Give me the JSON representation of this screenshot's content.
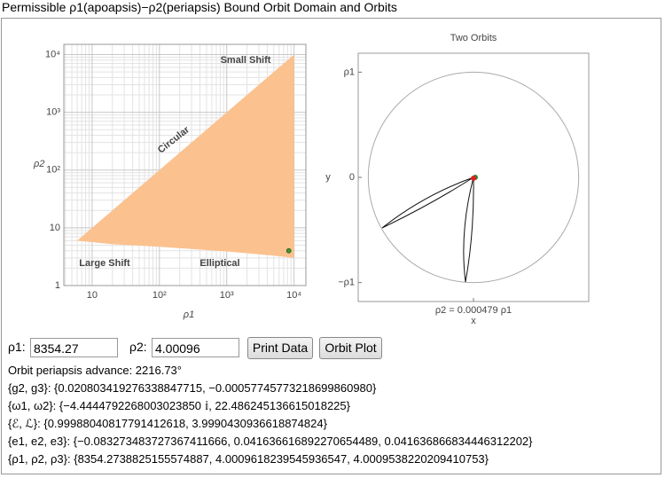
{
  "title": "Permissible ρ1(apoapsis)−ρ2(periapsis) Bound Orbit Domain and Orbits",
  "chart_data": [
    {
      "type": "area",
      "log_x": true,
      "log_y": true,
      "grid": true,
      "xlabel": "ρ1",
      "ylabel": "ρ2",
      "color": "#fbc18e",
      "x": [
        6,
        20,
        100,
        1000,
        5000,
        10000,
        10000
      ],
      "values": [
        6,
        5.2,
        4.7,
        3.9,
        3.3,
        3.0,
        10000
      ],
      "point": {
        "x": 8354.27,
        "y": 4.00096,
        "color": "#3a9a2a"
      },
      "xlim": [
        3.8,
        15000
      ],
      "ylim": [
        1,
        15000
      ],
      "xticks": [
        10,
        {
          "value": 100,
          "label": "10²"
        },
        {
          "value": 1000,
          "label": "10³"
        },
        {
          "value": 10000,
          "label": "10⁴"
        }
      ],
      "yticks": [
        1,
        10,
        {
          "value": 100,
          "label": "10²"
        },
        {
          "value": 1000,
          "label": "10³"
        },
        {
          "value": 10000,
          "label": "10⁴"
        }
      ],
      "annotations": [
        "Small Shift",
        "Circular",
        "Large Shift",
        "Elliptical"
      ]
    },
    {
      "type": "orbit",
      "title": "Two Orbits",
      "xlabel": "x",
      "ylabel": "y",
      "note": "ρ2 = 0.000479 ρ1",
      "xlim": [
        -1.09,
        1.09
      ],
      "ylim": [
        -1.18,
        1.18
      ],
      "yticks": [
        {
          "value": 1,
          "label": "ρ1"
        },
        0,
        {
          "value": -1,
          "label": "−ρ1"
        }
      ],
      "radius": 1,
      "color": "#aaaaaa"
    }
  ],
  "controls": {
    "rho1_label": "ρ1:",
    "rho1_value": "8354.27",
    "rho2_label": "ρ2:",
    "rho2_value": "4.00096",
    "buttons": [
      "Print Data",
      "Orbit Plot"
    ]
  },
  "output": [
    "Orbit periapsis advance: 2216.73°",
    "{g2, g3}: {0.020803419276338847715, −0.00057745773218699860980}",
    "{ω1, ω2}: {−4.4444792268003023850 𝕚, 22.486245136615018225}",
    "{ℰ, ℒ}: {0.99988040817791412618, 3.9990430936618874824}",
    "{e1, e2, e3}: {−0.083273483727367411666, 0.041636616892270654489, 0.041636866834446312202}",
    "{ρ1, ρ2, ρ3}: {8354.2738825155574887, 4.0009618239545936547, 4.0009538220209410753}"
  ]
}
